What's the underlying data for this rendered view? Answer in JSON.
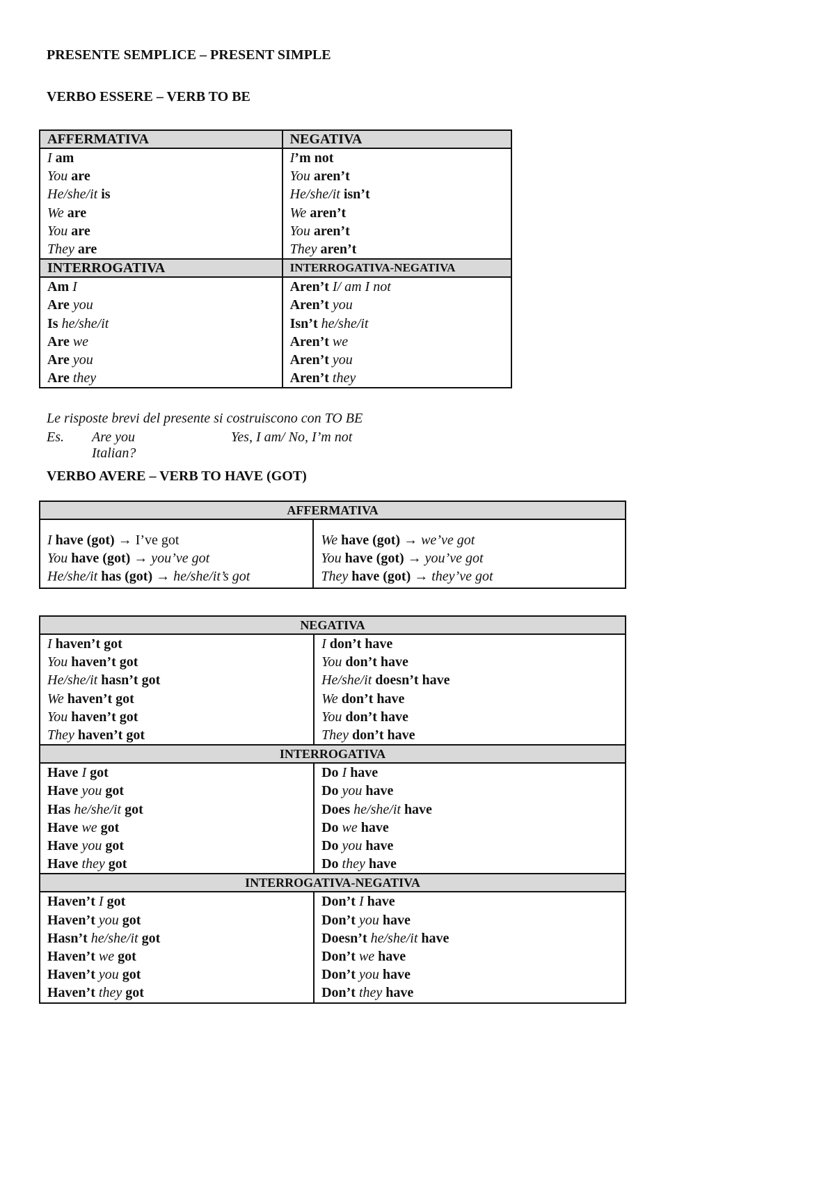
{
  "title": "PRESENTE SEMPLICE – PRESENT SIMPLE",
  "to_be": {
    "heading": "VERBO ESSERE – VERB TO BE",
    "sections": [
      {
        "headers": [
          "AFFERMATIVA",
          "NEGATIVA"
        ],
        "left": [
          [
            [
              "i",
              "I "
            ],
            [
              "b",
              "am"
            ]
          ],
          [
            [
              "i",
              "You "
            ],
            [
              "b",
              "are"
            ]
          ],
          [
            [
              "i",
              "He/she/it "
            ],
            [
              "b",
              "is"
            ]
          ],
          [
            [
              "i",
              "We "
            ],
            [
              "b",
              "are"
            ]
          ],
          [
            [
              "i",
              "You "
            ],
            [
              "b",
              "are"
            ]
          ],
          [
            [
              "i",
              "They "
            ],
            [
              "b",
              "are"
            ]
          ]
        ],
        "right": [
          [
            [
              "i",
              "I"
            ],
            [
              "b",
              "’m not"
            ]
          ],
          [
            [
              "i",
              "You "
            ],
            [
              "b",
              "aren’t"
            ]
          ],
          [
            [
              "i",
              "He/she/it "
            ],
            [
              "b",
              "isn’t"
            ]
          ],
          [
            [
              "i",
              "We "
            ],
            [
              "b",
              "aren’t"
            ]
          ],
          [
            [
              "i",
              "You "
            ],
            [
              "b",
              "aren’t"
            ]
          ],
          [
            [
              "i",
              "They "
            ],
            [
              "b",
              "aren’t"
            ]
          ]
        ]
      },
      {
        "headers": [
          "INTERROGATIVA",
          "INTERROGATIVA-NEGATIVA"
        ],
        "left": [
          [
            [
              "b",
              "Am "
            ],
            [
              "i",
              "I"
            ]
          ],
          [
            [
              "b",
              "Are "
            ],
            [
              "i",
              "you"
            ]
          ],
          [
            [
              "b",
              "Is "
            ],
            [
              "i",
              "he/she/it"
            ]
          ],
          [
            [
              "b",
              "Are "
            ],
            [
              "i",
              "we"
            ]
          ],
          [
            [
              "b",
              "Are "
            ],
            [
              "i",
              "you"
            ]
          ],
          [
            [
              "b",
              "Are "
            ],
            [
              "i",
              "they"
            ]
          ]
        ],
        "right": [
          [
            [
              "b",
              "Aren’t "
            ],
            [
              "i",
              "I/ am I not"
            ]
          ],
          [
            [
              "b",
              "Aren’t "
            ],
            [
              "i",
              "you"
            ]
          ],
          [
            [
              "b",
              "Isn’t "
            ],
            [
              "i",
              "he/she/it"
            ]
          ],
          [
            [
              "b",
              "Aren’t "
            ],
            [
              "i",
              "we"
            ]
          ],
          [
            [
              "b",
              "Aren’t "
            ],
            [
              "i",
              "you"
            ]
          ],
          [
            [
              "b",
              "Aren’t "
            ],
            [
              "i",
              "they"
            ]
          ]
        ]
      }
    ],
    "note": "Le risposte brevi del presente si costruiscono con TO BE",
    "example": {
      "label": "Es.",
      "question": "Are you Italian?",
      "answer": "Yes, I am/ No, I’m not"
    }
  },
  "to_have": {
    "heading": "VERBO AVERE – VERB TO HAVE (GOT)",
    "affermativa": {
      "header": "AFFERMATIVA",
      "left": [
        [
          [
            "i",
            "I "
          ],
          [
            "b",
            "have (got)"
          ],
          [
            "n",
            " → I’ve got"
          ]
        ],
        [
          [
            "i",
            "You "
          ],
          [
            "b",
            "have (got)"
          ],
          [
            "i",
            " → you’ve got"
          ]
        ],
        [
          [
            "i",
            "He/she/it "
          ],
          [
            "b",
            "has (got)"
          ],
          [
            "i",
            " → he/she/it’s got"
          ]
        ]
      ],
      "right": [
        [
          [
            "i",
            "We "
          ],
          [
            "b",
            "have (got)"
          ],
          [
            "i",
            " → we’ve got"
          ]
        ],
        [
          [
            "i",
            "You "
          ],
          [
            "b",
            "have (got)"
          ],
          [
            "i",
            " → you’ve got"
          ]
        ],
        [
          [
            "i",
            "They "
          ],
          [
            "b",
            "have (got)"
          ],
          [
            "i",
            " → they’ve got"
          ]
        ]
      ]
    },
    "sections": [
      {
        "header": "NEGATIVA",
        "left": [
          [
            [
              "i",
              "I "
            ],
            [
              "b",
              "haven’t got"
            ]
          ],
          [
            [
              "i",
              "You "
            ],
            [
              "b",
              "haven’t got"
            ]
          ],
          [
            [
              "i",
              "He/she/it "
            ],
            [
              "b",
              "hasn’t got"
            ]
          ],
          [
            [
              "i",
              "We "
            ],
            [
              "b",
              "haven’t got"
            ]
          ],
          [
            [
              "i",
              "You "
            ],
            [
              "b",
              "haven’t got"
            ]
          ],
          [
            [
              "i",
              "They "
            ],
            [
              "b",
              "haven’t got"
            ]
          ]
        ],
        "right": [
          [
            [
              "i",
              "I "
            ],
            [
              "b",
              "don’t have"
            ]
          ],
          [
            [
              "i",
              "You "
            ],
            [
              "b",
              "don’t have"
            ]
          ],
          [
            [
              "i",
              "He/she/it "
            ],
            [
              "b",
              "doesn’t have"
            ]
          ],
          [
            [
              "i",
              "We "
            ],
            [
              "b",
              "don’t have"
            ]
          ],
          [
            [
              "i",
              "You "
            ],
            [
              "b",
              "don’t have"
            ]
          ],
          [
            [
              "i",
              "They "
            ],
            [
              "b",
              "don’t have"
            ]
          ]
        ]
      },
      {
        "header": "INTERROGATIVA",
        "left": [
          [
            [
              "b",
              "Have "
            ],
            [
              "i",
              "I "
            ],
            [
              "b",
              "got"
            ]
          ],
          [
            [
              "b",
              "Have "
            ],
            [
              "i",
              "you "
            ],
            [
              "b",
              "got"
            ]
          ],
          [
            [
              "b",
              "Has "
            ],
            [
              "i",
              "he/she/it "
            ],
            [
              "b",
              "got"
            ]
          ],
          [
            [
              "b",
              "Have "
            ],
            [
              "i",
              "we "
            ],
            [
              "b",
              "got"
            ]
          ],
          [
            [
              "b",
              "Have "
            ],
            [
              "i",
              "you "
            ],
            [
              "b",
              "got"
            ]
          ],
          [
            [
              "b",
              "Have "
            ],
            [
              "i",
              "they "
            ],
            [
              "b",
              "got"
            ]
          ]
        ],
        "right": [
          [
            [
              "b",
              "Do "
            ],
            [
              "i",
              "I "
            ],
            [
              "b",
              "have"
            ]
          ],
          [
            [
              "b",
              "Do "
            ],
            [
              "i",
              "you "
            ],
            [
              "b",
              "have"
            ]
          ],
          [
            [
              "b",
              "Does "
            ],
            [
              "i",
              "he/she/it "
            ],
            [
              "b",
              "have"
            ]
          ],
          [
            [
              "b",
              "Do "
            ],
            [
              "i",
              "we "
            ],
            [
              "b",
              "have"
            ]
          ],
          [
            [
              "b",
              "Do "
            ],
            [
              "i",
              "you "
            ],
            [
              "b",
              "have"
            ]
          ],
          [
            [
              "b",
              "Do "
            ],
            [
              "i",
              "they "
            ],
            [
              "b",
              "have"
            ]
          ]
        ]
      },
      {
        "header": "INTERROGATIVA-NEGATIVA",
        "left": [
          [
            [
              "b",
              "Haven’t "
            ],
            [
              "i",
              "I "
            ],
            [
              "b",
              "got"
            ]
          ],
          [
            [
              "b",
              "Haven’t "
            ],
            [
              "i",
              "you "
            ],
            [
              "b",
              "got"
            ]
          ],
          [
            [
              "b",
              "Hasn’t "
            ],
            [
              "i",
              "he/she/it "
            ],
            [
              "b",
              "got"
            ]
          ],
          [
            [
              "b",
              "Haven’t "
            ],
            [
              "i",
              "we "
            ],
            [
              "b",
              "got"
            ]
          ],
          [
            [
              "b",
              "Haven’t "
            ],
            [
              "i",
              "you "
            ],
            [
              "b",
              "got"
            ]
          ],
          [
            [
              "b",
              "Haven’t "
            ],
            [
              "i",
              "they "
            ],
            [
              "b",
              "got"
            ]
          ]
        ],
        "right": [
          [
            [
              "b",
              "Don’t  "
            ],
            [
              "i",
              "I "
            ],
            [
              "b",
              "have"
            ]
          ],
          [
            [
              "b",
              "Don’t "
            ],
            [
              "i",
              "you "
            ],
            [
              "b",
              "have"
            ]
          ],
          [
            [
              "b",
              "Doesn’t "
            ],
            [
              "i",
              "he/she/it "
            ],
            [
              "b",
              "have"
            ]
          ],
          [
            [
              "b",
              "Don’t "
            ],
            [
              "i",
              "we "
            ],
            [
              "b",
              "have"
            ]
          ],
          [
            [
              "b",
              "Don’t "
            ],
            [
              "i",
              "you "
            ],
            [
              "b",
              "have"
            ]
          ],
          [
            [
              "b",
              "Don’t "
            ],
            [
              "i",
              "they "
            ],
            [
              "b",
              "have"
            ]
          ]
        ]
      }
    ]
  }
}
